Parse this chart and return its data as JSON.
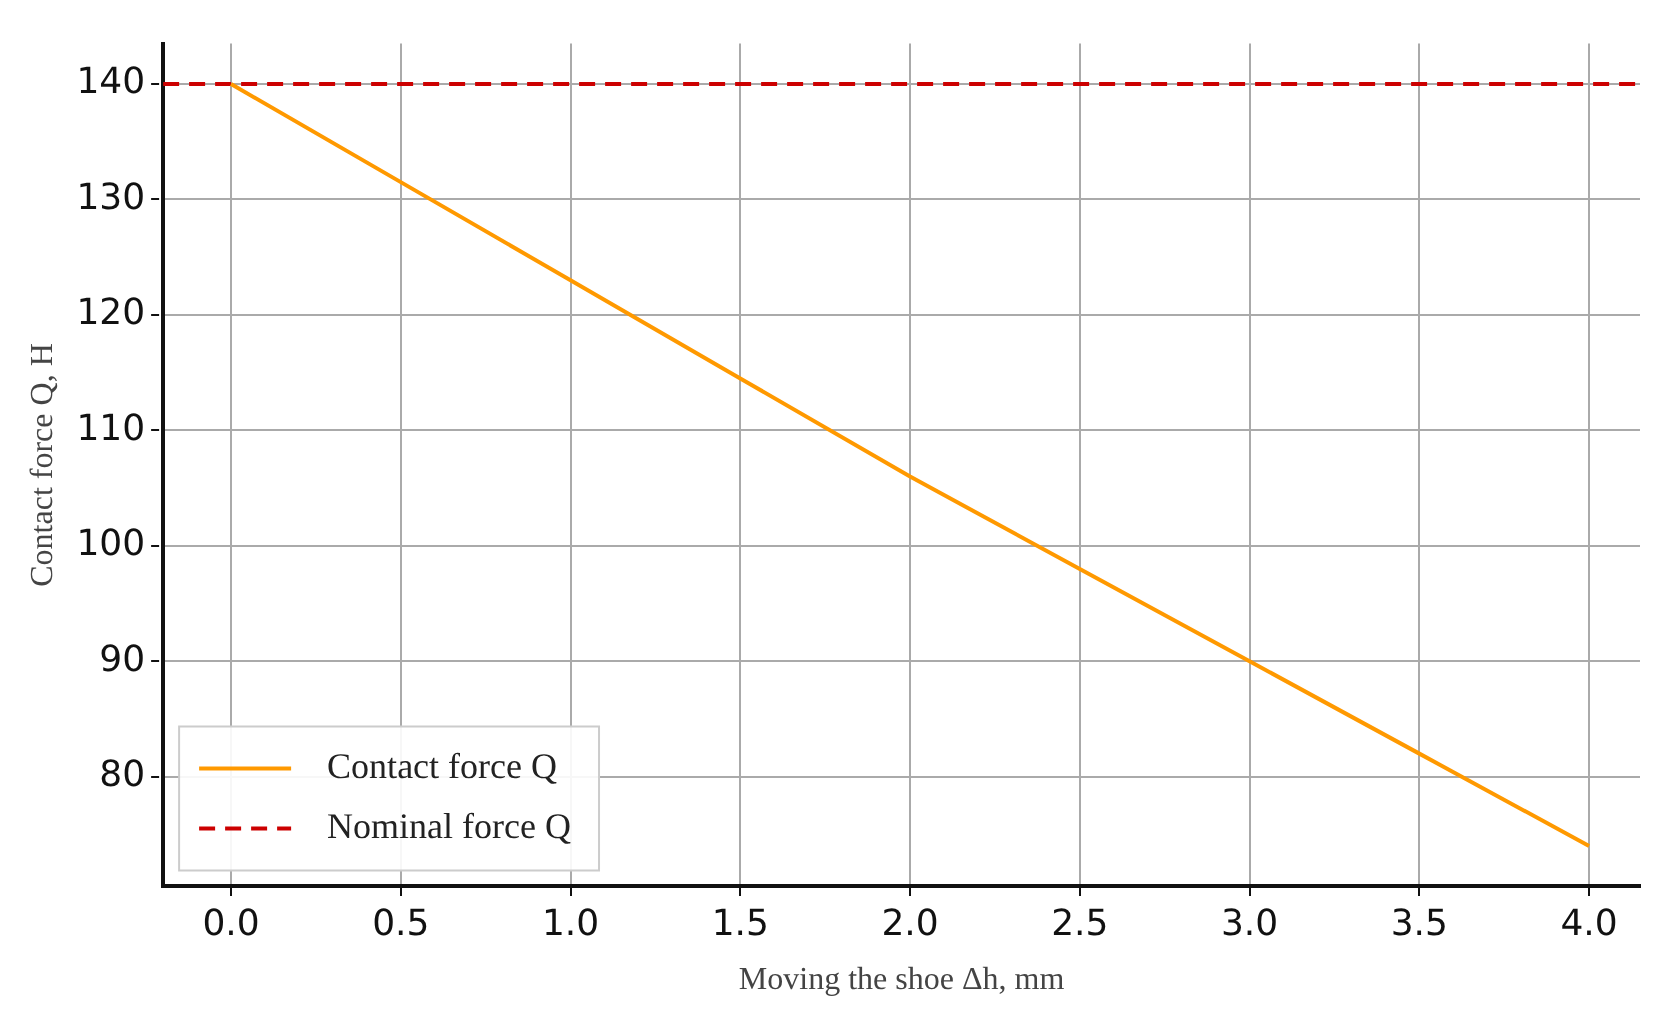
{
  "chart_data": {
    "type": "line",
    "xlabel": "Moving the shoe Δh, mm",
    "ylabel": "Contact force Q, H",
    "xlim": [
      -0.2,
      4.15
    ],
    "ylim": [
      70.5,
      143.5
    ],
    "xticks": [
      {
        "value": 0,
        "label": "0.0"
      },
      {
        "value": 0.5,
        "label": "0.5"
      },
      {
        "value": 1,
        "label": "1.0"
      },
      {
        "value": 1.5,
        "label": "1.5"
      },
      {
        "value": 2,
        "label": "2.0"
      },
      {
        "value": 2.5,
        "label": "2.5"
      },
      {
        "value": 3,
        "label": "3.0"
      },
      {
        "value": 3.5,
        "label": "3.5"
      },
      {
        "value": 4,
        "label": "4.0"
      }
    ],
    "yticks": [
      80,
      90,
      100,
      110,
      120,
      130,
      140
    ],
    "grid": true,
    "legend": "bottom left",
    "marker": "none",
    "series": [
      {
        "name": "Contact force Q",
        "color": "#ff9900",
        "x": [
          0,
          0.5,
          1,
          1.5,
          2,
          2.5,
          3,
          3.5,
          4
        ],
        "values": [
          140,
          131.5,
          123,
          114.5,
          106,
          98,
          90,
          82,
          74
        ],
        "line_style": "solid"
      },
      {
        "name": "Nominal force Q",
        "color": "#cc0000",
        "x": [
          -0.2,
          4.15
        ],
        "values": [
          140,
          140
        ],
        "line_style": "dashed"
      }
    ]
  }
}
